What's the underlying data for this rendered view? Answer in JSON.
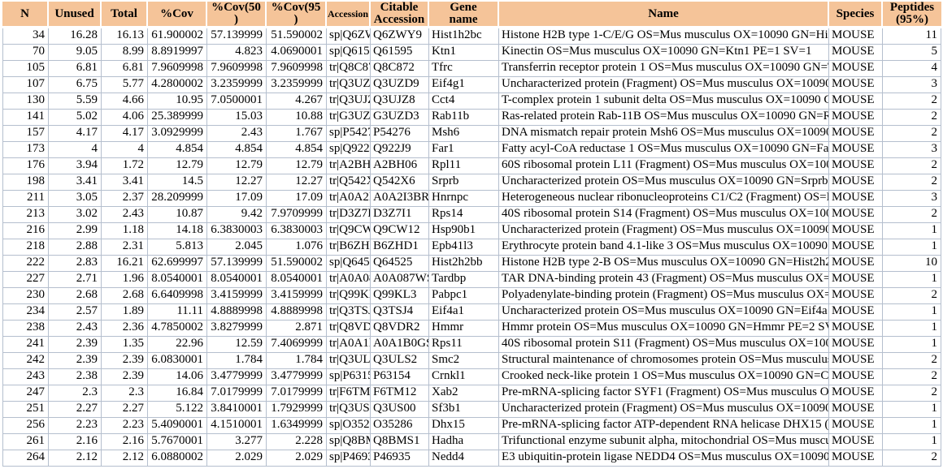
{
  "colors": {
    "header_bg": "#f5c499",
    "grid_line": "#b5bfce",
    "header_separator": "#ffffff",
    "text": "#000000"
  },
  "table": {
    "headers": [
      {
        "key": "n",
        "label": "N"
      },
      {
        "key": "unused",
        "label": "Unused"
      },
      {
        "key": "total",
        "label": "Total"
      },
      {
        "key": "pct-cov",
        "label": "%Cov"
      },
      {
        "key": "pct-cov50",
        "label": "%Cov(50",
        "label2": ")"
      },
      {
        "key": "pct-cov95",
        "label": "%Cov(95",
        "label2": ")"
      },
      {
        "key": "accession",
        "label": "Accession"
      },
      {
        "key": "citable-accession",
        "label": "Citable",
        "label2": "Accession"
      },
      {
        "key": "gene-name",
        "label": "Gene",
        "label2": "name"
      },
      {
        "key": "name",
        "label": "Name"
      },
      {
        "key": "species",
        "label": "Species"
      },
      {
        "key": "peptides-95",
        "label": "Peptides",
        "label2": "(95%)"
      }
    ],
    "rows": [
      [
        "34",
        "16.28",
        "16.13",
        "61.900002",
        "57.139999",
        "51.590002",
        "sp|Q6ZWY9",
        "Q6ZWY9",
        "Hist1h2bc",
        "Histone H2B type 1-C/E/G OS=Mus musculus OX=10090 GN=Hist",
        "MOUSE",
        "11"
      ],
      [
        "70",
        "9.05",
        "8.99",
        "8.8919997",
        "4.823",
        "4.0690001",
        "sp|Q61595|K",
        "Q61595",
        "Ktn1",
        "Kinectin OS=Mus musculus OX=10090 GN=Ktn1 PE=1 SV=1",
        "MOUSE",
        "5"
      ],
      [
        "105",
        "6.81",
        "6.81",
        "7.9609998",
        "7.9609998",
        "7.9609998",
        "tr|Q8C872|Q",
        "Q8C872",
        "Tfrc",
        "Transferrin receptor protein 1 OS=Mus musculus OX=10090 GN=T",
        "MOUSE",
        "4"
      ],
      [
        "107",
        "6.75",
        "5.77",
        "4.2800002",
        "3.2359999",
        "3.2359999",
        "tr|Q3UZD9",
        "Q3UZD9",
        "Eif4g1",
        "Uncharacterized protein (Fragment) OS=Mus musculus OX=10090",
        "MOUSE",
        "3"
      ],
      [
        "130",
        "5.59",
        "4.66",
        "10.95",
        "7.0500001",
        "4.267",
        "tr|Q3UJZ8|C",
        "Q3UJZ8",
        "Cct4",
        "T-complex protein 1 subunit delta OS=Mus musculus OX=10090 GN",
        "MOUSE",
        "2"
      ],
      [
        "141",
        "5.02",
        "4.06",
        "25.389999",
        "15.03",
        "10.88",
        "tr|G3UZD3|G",
        "G3UZD3",
        "Rab11b",
        "Ras-related protein Rab-11B OS=Mus musculus OX=10090 GN=Ra",
        "MOUSE",
        "2"
      ],
      [
        "157",
        "4.17",
        "4.17",
        "3.0929999",
        "2.43",
        "1.767",
        "sp|P54276|M",
        "P54276",
        "Msh6",
        "DNA mismatch repair protein Msh6 OS=Mus musculus OX=10090",
        "MOUSE",
        "2"
      ],
      [
        "173",
        "4",
        "4",
        "4.854",
        "4.854",
        "4.854",
        "sp|Q922J9|F",
        "Q922J9",
        "Far1",
        "Fatty acyl-CoA reductase 1 OS=Mus musculus OX=10090 GN=Far",
        "MOUSE",
        "3"
      ],
      [
        "176",
        "3.94",
        "1.72",
        "12.79",
        "12.79",
        "12.79",
        "tr|A2BH06|A",
        "A2BH06",
        "Rpl11",
        "60S ribosomal protein L11 (Fragment) OS=Mus musculus OX=1009",
        "MOUSE",
        "2"
      ],
      [
        "198",
        "3.41",
        "3.41",
        "14.5",
        "12.27",
        "12.27",
        "tr|Q542X6|Q",
        "Q542X6",
        "Srprb",
        "Uncharacterized protein OS=Mus musculus OX=10090 GN=Srprb P",
        "MOUSE",
        "2"
      ],
      [
        "211",
        "3.05",
        "2.37",
        "28.209999",
        "17.09",
        "17.09",
        "tr|A0A2I3B",
        "A0A2I3BR",
        "Hnrnpc",
        "Heterogeneous nuclear ribonucleoproteins C1/C2 (Fragment) OS=M",
        "MOUSE",
        "3"
      ],
      [
        "213",
        "3.02",
        "2.43",
        "10.87",
        "9.42",
        "7.9709999",
        "tr|D3Z7I1|D",
        "D3Z7I1",
        "Rps14",
        "40S ribosomal protein S14 (Fragment) OS=Mus musculus OX=1009",
        "MOUSE",
        "2"
      ],
      [
        "216",
        "2.99",
        "1.18",
        "14.18",
        "6.3830003",
        "6.3830003",
        "tr|Q9CW12",
        "Q9CW12",
        "Hsp90b1",
        "Uncharacterized protein (Fragment) OS=Mus musculus OX=10090",
        "MOUSE",
        "1"
      ],
      [
        "218",
        "2.88",
        "2.31",
        "5.813",
        "2.045",
        "1.076",
        "tr|B6ZHD1|B",
        "B6ZHD1",
        "Epb41l3",
        "Erythrocyte protein band 4.1-like 3 OS=Mus musculus OX=10090 G",
        "MOUSE",
        "1"
      ],
      [
        "222",
        "2.83",
        "16.21",
        "62.699997",
        "57.139999",
        "51.590002",
        "sp|Q64525|I",
        "Q64525",
        "Hist2h2bb",
        "Histone H2B type 2-B OS=Mus musculus OX=10090 GN=Hist2h2b",
        "MOUSE",
        "10"
      ],
      [
        "227",
        "2.71",
        "1.96",
        "8.0540001",
        "8.0540001",
        "8.0540001",
        "tr|A0A087W",
        "A0A087WS",
        "Tardbp",
        "TAR DNA-binding protein 43 (Fragment) OS=Mus musculus OX=1",
        "MOUSE",
        "1"
      ],
      [
        "230",
        "2.68",
        "2.68",
        "6.6409998",
        "3.4159999",
        "3.4159999",
        "tr|Q99KL3|Q",
        "Q99KL3",
        "Pabpc1",
        "Polyadenylate-binding protein (Fragment) OS=Mus musculus OX=1",
        "MOUSE",
        "2"
      ],
      [
        "234",
        "2.57",
        "1.89",
        "11.11",
        "4.8889998",
        "4.8889998",
        "tr|Q3TSJ4|Q",
        "Q3TSJ4",
        "Eif4a1",
        "Uncharacterized protein OS=Mus musculus OX=10090 GN=Eif4a1",
        "MOUSE",
        "1"
      ],
      [
        "238",
        "2.43",
        "2.36",
        "4.7850002",
        "3.8279999",
        "2.871",
        "tr|Q8VDR2",
        "Q8VDR2",
        "Hmmr",
        "Hmmr protein OS=Mus musculus OX=10090 GN=Hmmr PE=2 SV",
        "MOUSE",
        "1"
      ],
      [
        "241",
        "2.39",
        "1.35",
        "22.96",
        "12.59",
        "7.4069999",
        "tr|A0A1B0G",
        "A0A1B0GS",
        "Rps11",
        "40S ribosomal protein S11 (Fragment) OS=Mus musculus OX=1009",
        "MOUSE",
        "1"
      ],
      [
        "242",
        "2.39",
        "2.39",
        "6.0830001",
        "1.784",
        "1.784",
        "tr|Q3ULS2|Q",
        "Q3ULS2",
        "Smc2",
        "Structural maintenance of chromosomes protein OS=Mus musculus",
        "MOUSE",
        "2"
      ],
      [
        "243",
        "2.38",
        "2.39",
        "14.06",
        "3.4779999",
        "3.4779999",
        "sp|P63154|C",
        "P63154",
        "Crnkl1",
        "Crooked neck-like protein 1 OS=Mus musculus OX=10090 GN=Crn",
        "MOUSE",
        "2"
      ],
      [
        "247",
        "2.3",
        "2.3",
        "16.84",
        "7.0179999",
        "7.0179999",
        "tr|F6TM12|F",
        "F6TM12",
        "Xab2",
        "Pre-mRNA-splicing factor SYF1 (Fragment) OS=Mus musculus OX",
        "MOUSE",
        "2"
      ],
      [
        "251",
        "2.27",
        "2.27",
        "5.122",
        "3.8410001",
        "1.7929999",
        "tr|Q3US00|Q",
        "Q3US00",
        "Sf3b1",
        "Uncharacterized protein (Fragment) OS=Mus musculus OX=10090",
        "MOUSE",
        "1"
      ],
      [
        "256",
        "2.23",
        "2.23",
        "5.4090001",
        "4.1510001",
        "1.6349999",
        "sp|O35286|D",
        "O35286",
        "Dhx15",
        "Pre-mRNA-splicing factor ATP-dependent RNA helicase DHX15 (",
        "MOUSE",
        "1"
      ],
      [
        "261",
        "2.16",
        "2.16",
        "5.7670001",
        "3.277",
        "2.228",
        "sp|Q8BMS1",
        "Q8BMS1",
        "Hadha",
        "Trifunctional enzyme subunit alpha, mitochondrial OS=Mus musculu",
        "MOUSE",
        "1"
      ],
      [
        "264",
        "2.12",
        "2.12",
        "6.0880002",
        "2.029",
        "2.029",
        "sp|P46935|N",
        "P46935",
        "Nedd4",
        "E3 ubiquitin-protein ligase NEDD4 OS=Mus musculus OX=10090 G",
        "MOUSE",
        "2"
      ]
    ]
  }
}
